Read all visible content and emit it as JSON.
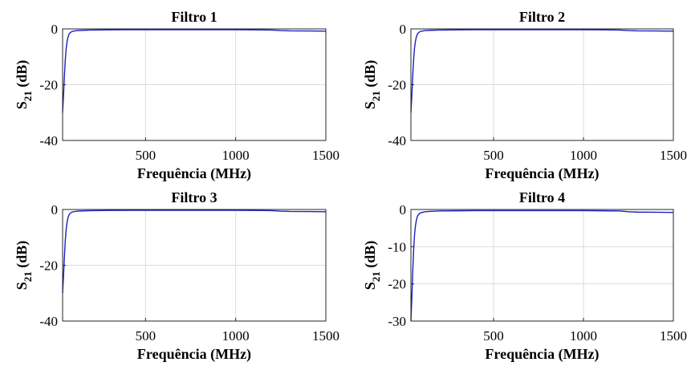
{
  "chart_data": [
    {
      "type": "line",
      "title": "Filtro 1",
      "xlabel": "Frequência (MHz)",
      "ylabel": {
        "base": "S",
        "sub": "21",
        "unit": " (dB)"
      },
      "xlim": [
        40,
        1500
      ],
      "ylim": [
        -40,
        0
      ],
      "xticks": [
        500,
        1000,
        1500
      ],
      "yticks": [
        -40,
        -20,
        0
      ],
      "grid": true,
      "color": "#1f1fbf",
      "series": [
        {
          "x": [
            40,
            45,
            50,
            55,
            60,
            65,
            70,
            75,
            80,
            90,
            100,
            120,
            150,
            200,
            300,
            400,
            500,
            600,
            700,
            800,
            900,
            1000,
            1100,
            1200,
            1250,
            1300,
            1400,
            1500
          ],
          "y": [
            -30,
            -24,
            -17,
            -11,
            -7,
            -4.5,
            -3,
            -2,
            -1.5,
            -1,
            -0.8,
            -0.6,
            -0.5,
            -0.4,
            -0.35,
            -0.3,
            -0.3,
            -0.3,
            -0.3,
            -0.3,
            -0.3,
            -0.3,
            -0.35,
            -0.4,
            -0.6,
            -0.7,
            -0.75,
            -0.8
          ]
        }
      ]
    },
    {
      "type": "line",
      "title": "Filtro 2",
      "xlabel": "Frequência (MHz)",
      "ylabel": {
        "base": "S",
        "sub": "21",
        "unit": " (dB)"
      },
      "xlim": [
        40,
        1500
      ],
      "ylim": [
        -40,
        0
      ],
      "xticks": [
        500,
        1000,
        1500
      ],
      "yticks": [
        -40,
        -20,
        0
      ],
      "grid": true,
      "color": "#1f1fbf",
      "series": [
        {
          "x": [
            40,
            45,
            50,
            55,
            60,
            65,
            70,
            75,
            80,
            90,
            100,
            120,
            150,
            200,
            300,
            400,
            500,
            600,
            700,
            800,
            900,
            1000,
            1100,
            1200,
            1250,
            1300,
            1400,
            1500
          ],
          "y": [
            -30,
            -24,
            -17,
            -11,
            -7,
            -4.5,
            -3,
            -2,
            -1.5,
            -1,
            -0.8,
            -0.6,
            -0.5,
            -0.4,
            -0.35,
            -0.3,
            -0.3,
            -0.3,
            -0.3,
            -0.3,
            -0.3,
            -0.3,
            -0.35,
            -0.4,
            -0.6,
            -0.7,
            -0.75,
            -0.8
          ]
        }
      ]
    },
    {
      "type": "line",
      "title": "Filtro 3",
      "xlabel": "Frequência (MHz)",
      "ylabel": {
        "base": "S",
        "sub": "21",
        "unit": " (dB)"
      },
      "xlim": [
        40,
        1500
      ],
      "ylim": [
        -40,
        0
      ],
      "xticks": [
        500,
        1000,
        1500
      ],
      "yticks": [
        -40,
        -20,
        0
      ],
      "grid": true,
      "color": "#1f1fbf",
      "series": [
        {
          "x": [
            40,
            45,
            50,
            55,
            60,
            65,
            70,
            75,
            80,
            90,
            100,
            120,
            150,
            200,
            300,
            400,
            500,
            600,
            700,
            800,
            900,
            1000,
            1100,
            1200,
            1250,
            1300,
            1400,
            1500
          ],
          "y": [
            -30,
            -24,
            -17,
            -11,
            -7,
            -4.5,
            -3,
            -2,
            -1.5,
            -1,
            -0.8,
            -0.6,
            -0.5,
            -0.4,
            -0.35,
            -0.3,
            -0.3,
            -0.3,
            -0.3,
            -0.3,
            -0.3,
            -0.3,
            -0.35,
            -0.4,
            -0.6,
            -0.7,
            -0.75,
            -0.8
          ]
        }
      ]
    },
    {
      "type": "line",
      "title": "Filtro 4",
      "xlabel": "Frequência (MHz)",
      "ylabel": {
        "base": "S",
        "sub": "21",
        "unit": " (dB)"
      },
      "xlim": [
        40,
        1500
      ],
      "ylim": [
        -30,
        0
      ],
      "xticks": [
        500,
        1000,
        1500
      ],
      "yticks": [
        -30,
        -20,
        -10,
        0
      ],
      "grid": true,
      "color": "#1f1fbf",
      "series": [
        {
          "x": [
            40,
            45,
            50,
            55,
            60,
            65,
            70,
            75,
            80,
            90,
            100,
            120,
            150,
            200,
            300,
            400,
            500,
            600,
            700,
            800,
            900,
            1000,
            1100,
            1200,
            1250,
            1300,
            1400,
            1500
          ],
          "y": [
            -30,
            -24,
            -17,
            -11,
            -7,
            -4.5,
            -3,
            -2,
            -1.5,
            -1,
            -0.8,
            -0.6,
            -0.5,
            -0.4,
            -0.35,
            -0.3,
            -0.3,
            -0.3,
            -0.3,
            -0.3,
            -0.3,
            -0.3,
            -0.35,
            -0.4,
            -0.6,
            -0.7,
            -0.75,
            -0.8
          ]
        }
      ]
    }
  ]
}
